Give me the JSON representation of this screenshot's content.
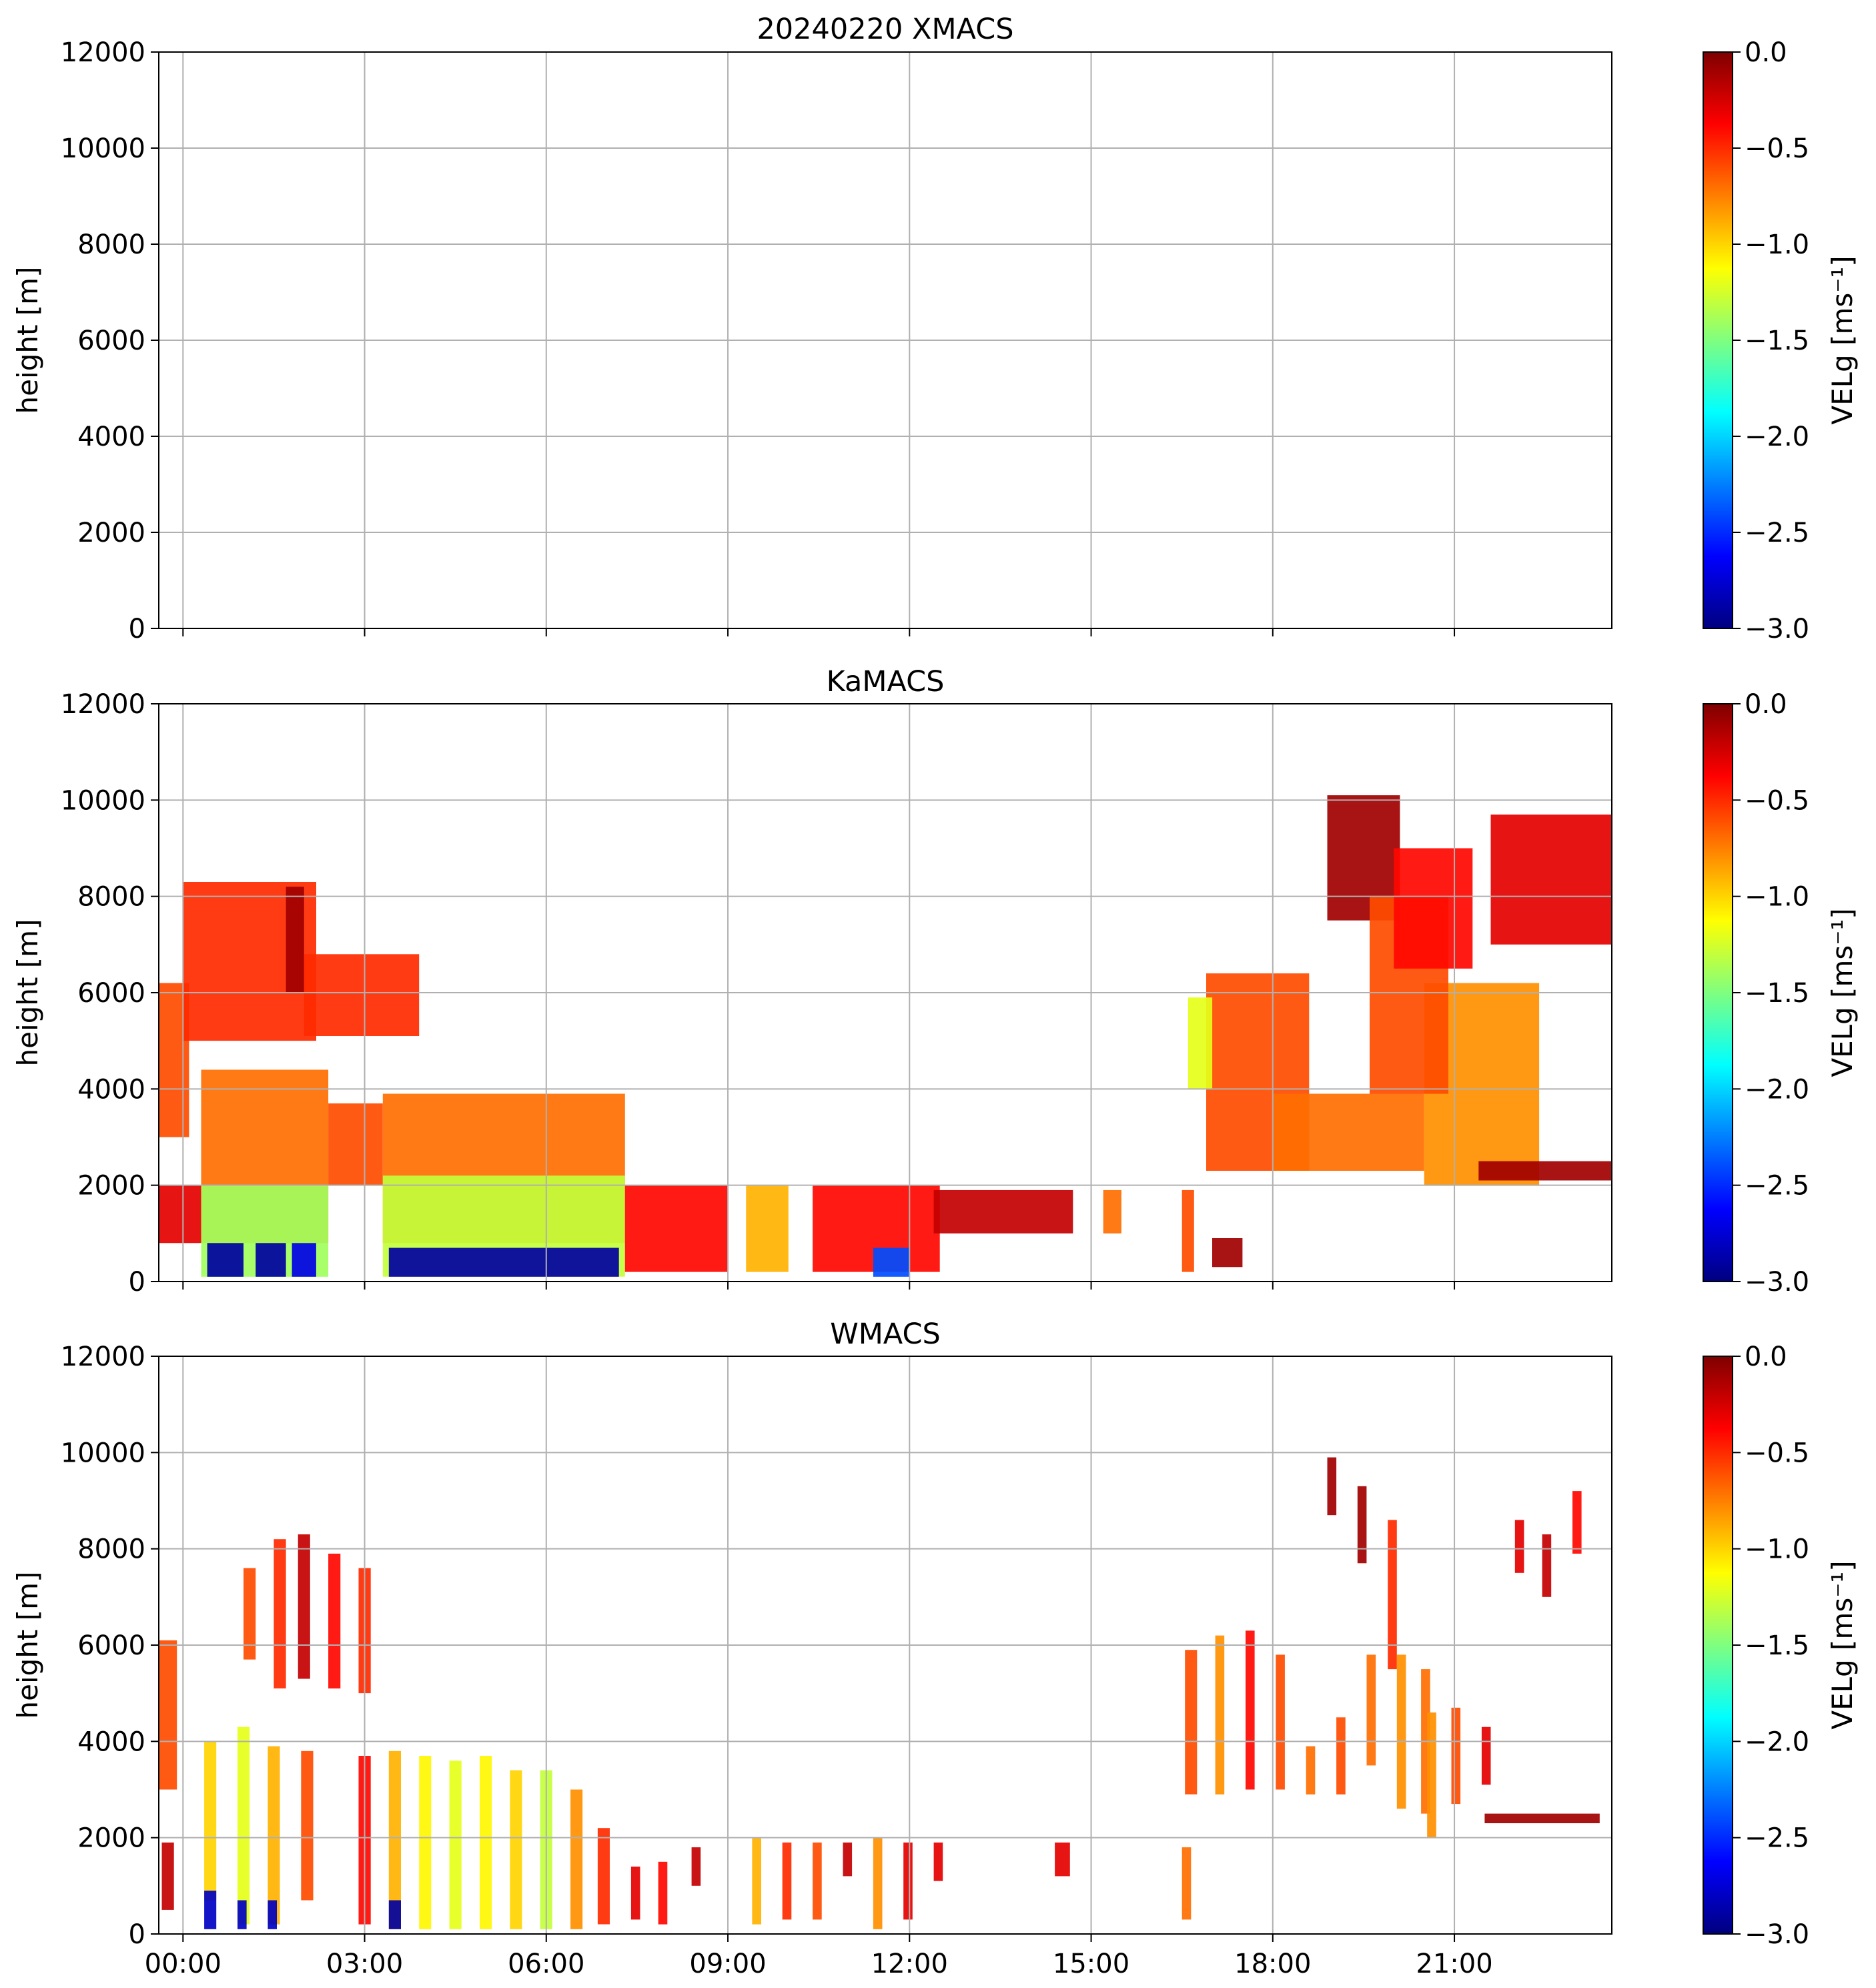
{
  "figure": {
    "panels": [
      {
        "title": "20240220 XMACS"
      },
      {
        "title": "KaMACS"
      },
      {
        "title": "WMACS"
      }
    ]
  },
  "colormap": {
    "name": "jet",
    "stops": [
      "#00007f",
      "#0000ff",
      "#007fff",
      "#00ffff",
      "#7fff7f",
      "#ffff00",
      "#ff7f00",
      "#ff0000",
      "#7f0000"
    ]
  },
  "chart_data": [
    {
      "type": "heatmap",
      "title": "20240220 XMACS",
      "xlabel": "",
      "ylabel": "height [m]",
      "xlim_hours": [
        -0.4,
        23.6
      ],
      "ylim": [
        0,
        12000
      ],
      "x_ticks": [
        "00:00",
        "03:00",
        "06:00",
        "09:00",
        "12:00",
        "15:00",
        "18:00",
        "21:00"
      ],
      "x_tick_labels_shown": false,
      "y_ticks": [
        "0",
        "2000",
        "4000",
        "6000",
        "8000",
        "10000",
        "12000"
      ],
      "grid": true,
      "colorbar": {
        "label": "VELg [ms⁻¹]",
        "range": [
          -3.0,
          0.0
        ],
        "ticks": [
          "0.0",
          "−0.5",
          "−1.0",
          "−1.5",
          "−2.0",
          "−2.5",
          "−3.0"
        ]
      },
      "regions": []
    },
    {
      "type": "heatmap",
      "title": "KaMACS",
      "xlabel": "",
      "ylabel": "height [m]",
      "xlim_hours": [
        -0.4,
        23.6
      ],
      "ylim": [
        0,
        12000
      ],
      "x_ticks": [
        "00:00",
        "03:00",
        "06:00",
        "09:00",
        "12:00",
        "15:00",
        "18:00",
        "21:00"
      ],
      "x_tick_labels_shown": false,
      "y_ticks": [
        "0",
        "2000",
        "4000",
        "6000",
        "8000",
        "10000",
        "12000"
      ],
      "grid": true,
      "colorbar": {
        "label": "VELg [ms⁻¹]",
        "range": [
          -3.0,
          0.0
        ],
        "ticks": [
          "0.0",
          "−0.5",
          "−1.0",
          "−1.5",
          "−2.0",
          "−2.5",
          "−3.0"
        ]
      },
      "regions": [
        {
          "t0": -0.4,
          "t1": 0.1,
          "h0": 3000,
          "h1": 6200,
          "vel": -0.6
        },
        {
          "t0": 0.0,
          "t1": 2.2,
          "h0": 5000,
          "h1": 8300,
          "vel": -0.5
        },
        {
          "t0": 1.7,
          "t1": 2.0,
          "h0": 6000,
          "h1": 8200,
          "vel": -0.1
        },
        {
          "t0": 2.0,
          "t1": 3.9,
          "h0": 5100,
          "h1": 6800,
          "vel": -0.5
        },
        {
          "t0": -0.4,
          "t1": 0.3,
          "h0": 800,
          "h1": 2000,
          "vel": -0.3
        },
        {
          "t0": 0.3,
          "t1": 2.4,
          "h0": 800,
          "h1": 4400,
          "vel": -0.7
        },
        {
          "t0": 2.4,
          "t1": 3.3,
          "h0": 2000,
          "h1": 3700,
          "vel": -0.6
        },
        {
          "t0": 3.3,
          "t1": 7.3,
          "h0": 800,
          "h1": 3900,
          "vel": -0.7
        },
        {
          "t0": 0.3,
          "t1": 2.4,
          "h0": 100,
          "h1": 2000,
          "vel": -1.4
        },
        {
          "t0": 3.3,
          "t1": 7.3,
          "h0": 100,
          "h1": 2200,
          "vel": -1.3
        },
        {
          "t0": 0.4,
          "t1": 1.0,
          "h0": 100,
          "h1": 800,
          "vel": -2.9
        },
        {
          "t0": 1.2,
          "t1": 1.7,
          "h0": 100,
          "h1": 800,
          "vel": -2.9
        },
        {
          "t0": 1.8,
          "t1": 2.2,
          "h0": 100,
          "h1": 800,
          "vel": -2.7
        },
        {
          "t0": 3.4,
          "t1": 7.2,
          "h0": 100,
          "h1": 700,
          "vel": -2.9
        },
        {
          "t0": 7.3,
          "t1": 9.0,
          "h0": 200,
          "h1": 2000,
          "vel": -0.4
        },
        {
          "t0": 9.3,
          "t1": 10.0,
          "h0": 200,
          "h1": 2000,
          "vel": -0.9
        },
        {
          "t0": 10.4,
          "t1": 12.5,
          "h0": 200,
          "h1": 2000,
          "vel": -0.4
        },
        {
          "t0": 11.4,
          "t1": 12.0,
          "h0": 100,
          "h1": 700,
          "vel": -2.4
        },
        {
          "t0": 12.4,
          "t1": 14.7,
          "h0": 1000,
          "h1": 1900,
          "vel": -0.2
        },
        {
          "t0": 15.2,
          "t1": 15.5,
          "h0": 1000,
          "h1": 1900,
          "vel": -0.7
        },
        {
          "t0": 16.5,
          "t1": 16.7,
          "h0": 200,
          "h1": 1900,
          "vel": -0.6
        },
        {
          "t0": 17.0,
          "t1": 17.5,
          "h0": 300,
          "h1": 900,
          "vel": -0.1
        },
        {
          "t0": 16.9,
          "t1": 18.6,
          "h0": 2300,
          "h1": 6400,
          "vel": -0.6
        },
        {
          "t0": 16.6,
          "t1": 17.0,
          "h0": 4000,
          "h1": 5900,
          "vel": -1.2
        },
        {
          "t0": 18.0,
          "t1": 20.5,
          "h0": 2300,
          "h1": 3900,
          "vel": -0.7
        },
        {
          "t0": 20.5,
          "t1": 22.4,
          "h0": 2000,
          "h1": 6200,
          "vel": -0.8
        },
        {
          "t0": 18.9,
          "t1": 20.1,
          "h0": 7500,
          "h1": 10100,
          "vel": -0.1
        },
        {
          "t0": 19.6,
          "t1": 20.9,
          "h0": 3900,
          "h1": 8000,
          "vel": -0.6
        },
        {
          "t0": 20.0,
          "t1": 21.3,
          "h0": 6500,
          "h1": 9000,
          "vel": -0.4
        },
        {
          "t0": 21.6,
          "t1": 23.6,
          "h0": 7000,
          "h1": 9700,
          "vel": -0.3
        },
        {
          "t0": 21.4,
          "t1": 23.6,
          "h0": 2100,
          "h1": 2500,
          "vel": -0.1
        }
      ]
    },
    {
      "type": "heatmap",
      "title": "WMACS",
      "xlabel": "",
      "ylabel": "height [m]",
      "xlim_hours": [
        -0.4,
        23.6
      ],
      "ylim": [
        0,
        12000
      ],
      "x_ticks": [
        "00:00",
        "03:00",
        "06:00",
        "09:00",
        "12:00",
        "15:00",
        "18:00",
        "21:00"
      ],
      "x_tick_labels_shown": true,
      "y_ticks": [
        "0",
        "2000",
        "4000",
        "6000",
        "8000",
        "10000",
        "12000"
      ],
      "grid": true,
      "colorbar": {
        "label": "VELg [ms⁻¹]",
        "range": [
          -3.0,
          0.0
        ],
        "ticks": [
          "0.0",
          "−0.5",
          "−1.0",
          "−1.5",
          "−2.0",
          "−2.5",
          "−3.0"
        ]
      },
      "regions": [
        {
          "t0": -0.4,
          "t1": -0.1,
          "h0": 3000,
          "h1": 6100,
          "vel": -0.6
        },
        {
          "t0": -0.35,
          "t1": -0.15,
          "h0": 500,
          "h1": 1900,
          "vel": -0.2
        },
        {
          "t0": 0.35,
          "t1": 0.55,
          "h0": 700,
          "h1": 4000,
          "vel": -1.0
        },
        {
          "t0": 0.35,
          "t1": 0.55,
          "h0": 100,
          "h1": 900,
          "vel": -2.8
        },
        {
          "t0": 0.9,
          "t1": 1.1,
          "h0": 200,
          "h1": 4300,
          "vel": -1.2
        },
        {
          "t0": 0.9,
          "t1": 1.05,
          "h0": 100,
          "h1": 700,
          "vel": -2.8
        },
        {
          "t0": 1.4,
          "t1": 1.6,
          "h0": 200,
          "h1": 3900,
          "vel": -0.9
        },
        {
          "t0": 1.4,
          "t1": 1.55,
          "h0": 100,
          "h1": 700,
          "vel": -2.8
        },
        {
          "t0": 1.95,
          "t1": 2.15,
          "h0": 700,
          "h1": 3800,
          "vel": -0.6
        },
        {
          "t0": 1.0,
          "t1": 1.2,
          "h0": 5700,
          "h1": 7600,
          "vel": -0.6
        },
        {
          "t0": 1.5,
          "t1": 1.7,
          "h0": 5100,
          "h1": 8200,
          "vel": -0.5
        },
        {
          "t0": 1.9,
          "t1": 2.1,
          "h0": 5300,
          "h1": 8300,
          "vel": -0.2
        },
        {
          "t0": 2.4,
          "t1": 2.6,
          "h0": 5100,
          "h1": 7900,
          "vel": -0.4
        },
        {
          "t0": 2.9,
          "t1": 3.1,
          "h0": 5000,
          "h1": 7600,
          "vel": -0.5
        },
        {
          "t0": 2.9,
          "t1": 3.1,
          "h0": 200,
          "h1": 3700,
          "vel": -0.4
        },
        {
          "t0": 3.4,
          "t1": 3.6,
          "h0": 100,
          "h1": 3800,
          "vel": -0.9
        },
        {
          "t0": 3.4,
          "t1": 3.6,
          "h0": 100,
          "h1": 700,
          "vel": -2.9
        },
        {
          "t0": 3.9,
          "t1": 4.1,
          "h0": 100,
          "h1": 3700,
          "vel": -1.1
        },
        {
          "t0": 4.4,
          "t1": 4.6,
          "h0": 100,
          "h1": 3600,
          "vel": -1.2
        },
        {
          "t0": 4.9,
          "t1": 5.1,
          "h0": 100,
          "h1": 3700,
          "vel": -1.1
        },
        {
          "t0": 5.4,
          "t1": 5.6,
          "h0": 100,
          "h1": 3400,
          "vel": -1.0
        },
        {
          "t0": 5.9,
          "t1": 6.1,
          "h0": 100,
          "h1": 3400,
          "vel": -1.3
        },
        {
          "t0": 6.4,
          "t1": 6.6,
          "h0": 100,
          "h1": 3000,
          "vel": -0.8
        },
        {
          "t0": 6.85,
          "t1": 7.05,
          "h0": 200,
          "h1": 2200,
          "vel": -0.5
        },
        {
          "t0": 7.4,
          "t1": 7.55,
          "h0": 300,
          "h1": 1400,
          "vel": -0.3
        },
        {
          "t0": 7.85,
          "t1": 8.0,
          "h0": 200,
          "h1": 1500,
          "vel": -0.4
        },
        {
          "t0": 8.4,
          "t1": 8.55,
          "h0": 1000,
          "h1": 1800,
          "vel": -0.2
        },
        {
          "t0": 9.4,
          "t1": 9.55,
          "h0": 200,
          "h1": 2000,
          "vel": -0.9
        },
        {
          "t0": 9.9,
          "t1": 10.05,
          "h0": 300,
          "h1": 1900,
          "vel": -0.5
        },
        {
          "t0": 10.4,
          "t1": 10.55,
          "h0": 300,
          "h1": 1900,
          "vel": -0.6
        },
        {
          "t0": 10.9,
          "t1": 11.05,
          "h0": 1200,
          "h1": 1900,
          "vel": -0.2
        },
        {
          "t0": 11.4,
          "t1": 11.55,
          "h0": 100,
          "h1": 2000,
          "vel": -0.8
        },
        {
          "t0": 11.9,
          "t1": 12.05,
          "h0": 300,
          "h1": 1900,
          "vel": -0.3
        },
        {
          "t0": 12.4,
          "t1": 12.55,
          "h0": 1100,
          "h1": 1900,
          "vel": -0.3
        },
        {
          "t0": 14.4,
          "t1": 14.65,
          "h0": 1200,
          "h1": 1900,
          "vel": -0.3
        },
        {
          "t0": 16.5,
          "t1": 16.65,
          "h0": 300,
          "h1": 1800,
          "vel": -0.7
        },
        {
          "t0": 16.55,
          "t1": 16.75,
          "h0": 2900,
          "h1": 5900,
          "vel": -0.6
        },
        {
          "t0": 17.05,
          "t1": 17.2,
          "h0": 2900,
          "h1": 6200,
          "vel": -0.8
        },
        {
          "t0": 17.55,
          "t1": 17.7,
          "h0": 3000,
          "h1": 6300,
          "vel": -0.4
        },
        {
          "t0": 18.05,
          "t1": 18.2,
          "h0": 3000,
          "h1": 5800,
          "vel": -0.6
        },
        {
          "t0": 18.55,
          "t1": 18.7,
          "h0": 2900,
          "h1": 3900,
          "vel": -0.7
        },
        {
          "t0": 19.05,
          "t1": 19.2,
          "h0": 2900,
          "h1": 4500,
          "vel": -0.6
        },
        {
          "t0": 18.9,
          "t1": 19.05,
          "h0": 8700,
          "h1": 9900,
          "vel": -0.1
        },
        {
          "t0": 19.4,
          "t1": 19.55,
          "h0": 7700,
          "h1": 9300,
          "vel": -0.1
        },
        {
          "t0": 19.55,
          "t1": 19.7,
          "h0": 3500,
          "h1": 5800,
          "vel": -0.7
        },
        {
          "t0": 19.9,
          "t1": 20.05,
          "h0": 5500,
          "h1": 8600,
          "vel": -0.5
        },
        {
          "t0": 20.05,
          "t1": 20.2,
          "h0": 2600,
          "h1": 5800,
          "vel": -0.8
        },
        {
          "t0": 20.45,
          "t1": 20.6,
          "h0": 2500,
          "h1": 5500,
          "vel": -0.7
        },
        {
          "t0": 20.55,
          "t1": 20.7,
          "h0": 2000,
          "h1": 4600,
          "vel": -0.8
        },
        {
          "t0": 20.95,
          "t1": 21.1,
          "h0": 2700,
          "h1": 4700,
          "vel": -0.6
        },
        {
          "t0": 21.45,
          "t1": 21.6,
          "h0": 3100,
          "h1": 4300,
          "vel": -0.3
        },
        {
          "t0": 21.5,
          "t1": 23.4,
          "h0": 2300,
          "h1": 2500,
          "vel": -0.1
        },
        {
          "t0": 22.0,
          "t1": 22.15,
          "h0": 7500,
          "h1": 8600,
          "vel": -0.3
        },
        {
          "t0": 22.45,
          "t1": 22.6,
          "h0": 7000,
          "h1": 8300,
          "vel": -0.2
        },
        {
          "t0": 22.95,
          "t1": 23.1,
          "h0": 7900,
          "h1": 9200,
          "vel": -0.4
        }
      ]
    }
  ]
}
